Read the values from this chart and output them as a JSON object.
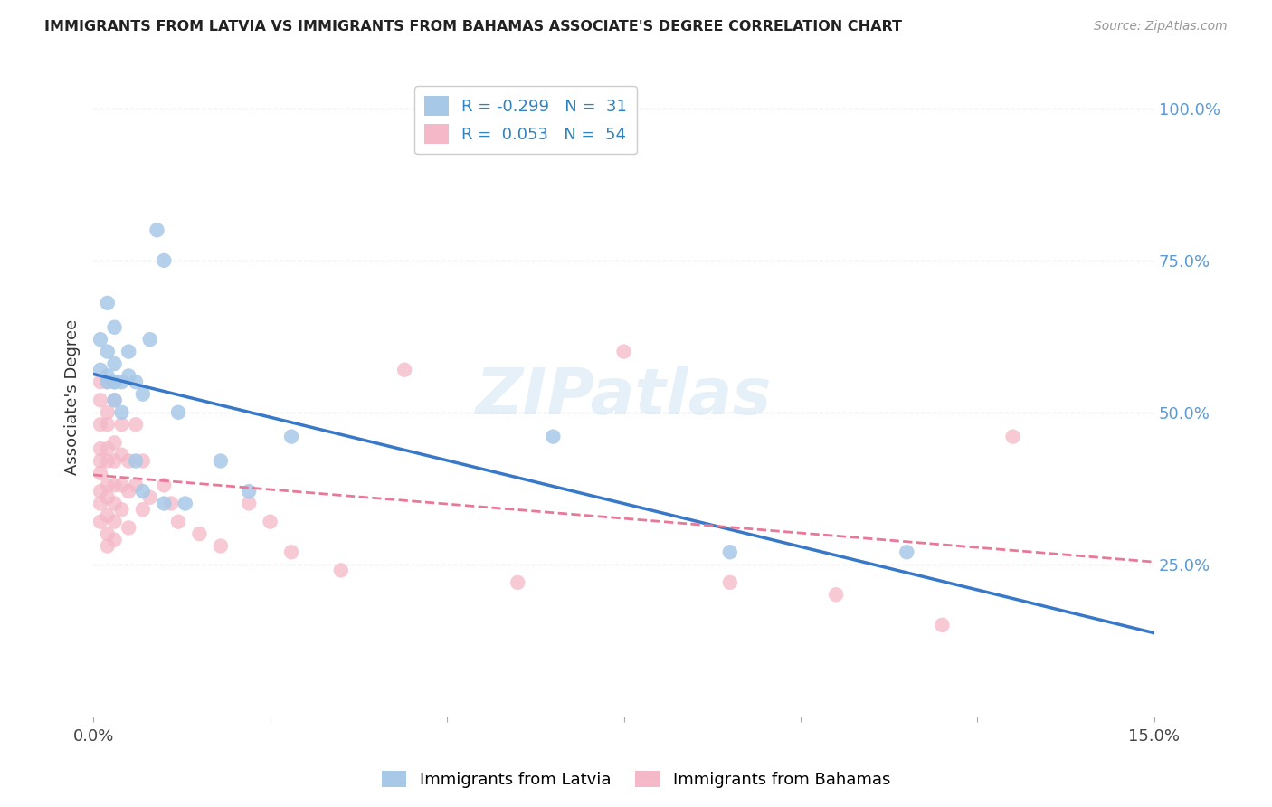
{
  "title": "IMMIGRANTS FROM LATVIA VS IMMIGRANTS FROM BAHAMAS ASSOCIATE'S DEGREE CORRELATION CHART",
  "source": "Source: ZipAtlas.com",
  "ylabel": "Associate's Degree",
  "right_yticks": [
    "25.0%",
    "50.0%",
    "75.0%",
    "100.0%"
  ],
  "right_ytick_vals": [
    0.25,
    0.5,
    0.75,
    1.0
  ],
  "legend_label1": "Immigrants from Latvia",
  "legend_label2": "Immigrants from Bahamas",
  "color_blue": "#a8c8e8",
  "color_pink": "#f4b8c8",
  "color_line_blue": "#3878c8",
  "color_line_pink": "#e87898",
  "watermark": "ZIPatlas",
  "xlim": [
    0.0,
    0.15
  ],
  "ylim": [
    0.0,
    1.05
  ],
  "latvia_x": [
    0.001,
    0.001,
    0.002,
    0.002,
    0.002,
    0.002,
    0.003,
    0.003,
    0.003,
    0.003,
    0.003,
    0.004,
    0.004,
    0.005,
    0.005,
    0.006,
    0.006,
    0.007,
    0.007,
    0.008,
    0.009,
    0.01,
    0.01,
    0.012,
    0.013,
    0.018,
    0.022,
    0.028,
    0.065,
    0.09,
    0.115
  ],
  "latvia_y": [
    0.57,
    0.62,
    0.56,
    0.6,
    0.55,
    0.68,
    0.55,
    0.55,
    0.58,
    0.64,
    0.52,
    0.55,
    0.5,
    0.6,
    0.56,
    0.55,
    0.42,
    0.37,
    0.53,
    0.62,
    0.8,
    0.75,
    0.35,
    0.5,
    0.35,
    0.42,
    0.37,
    0.46,
    0.46,
    0.27,
    0.27
  ],
  "bahamas_x": [
    0.001,
    0.001,
    0.001,
    0.001,
    0.001,
    0.001,
    0.001,
    0.001,
    0.001,
    0.002,
    0.002,
    0.002,
    0.002,
    0.002,
    0.002,
    0.002,
    0.002,
    0.002,
    0.002,
    0.003,
    0.003,
    0.003,
    0.003,
    0.003,
    0.003,
    0.003,
    0.004,
    0.004,
    0.004,
    0.004,
    0.005,
    0.005,
    0.005,
    0.006,
    0.006,
    0.007,
    0.007,
    0.008,
    0.01,
    0.011,
    0.012,
    0.015,
    0.018,
    0.022,
    0.025,
    0.028,
    0.035,
    0.044,
    0.06,
    0.075,
    0.09,
    0.105,
    0.12,
    0.13
  ],
  "bahamas_y": [
    0.55,
    0.52,
    0.48,
    0.44,
    0.42,
    0.4,
    0.37,
    0.35,
    0.32,
    0.55,
    0.5,
    0.48,
    0.44,
    0.42,
    0.38,
    0.36,
    0.33,
    0.3,
    0.28,
    0.52,
    0.45,
    0.42,
    0.38,
    0.35,
    0.32,
    0.29,
    0.48,
    0.43,
    0.38,
    0.34,
    0.42,
    0.37,
    0.31,
    0.48,
    0.38,
    0.42,
    0.34,
    0.36,
    0.38,
    0.35,
    0.32,
    0.3,
    0.28,
    0.35,
    0.32,
    0.27,
    0.24,
    0.57,
    0.22,
    0.6,
    0.22,
    0.2,
    0.15,
    0.46
  ]
}
